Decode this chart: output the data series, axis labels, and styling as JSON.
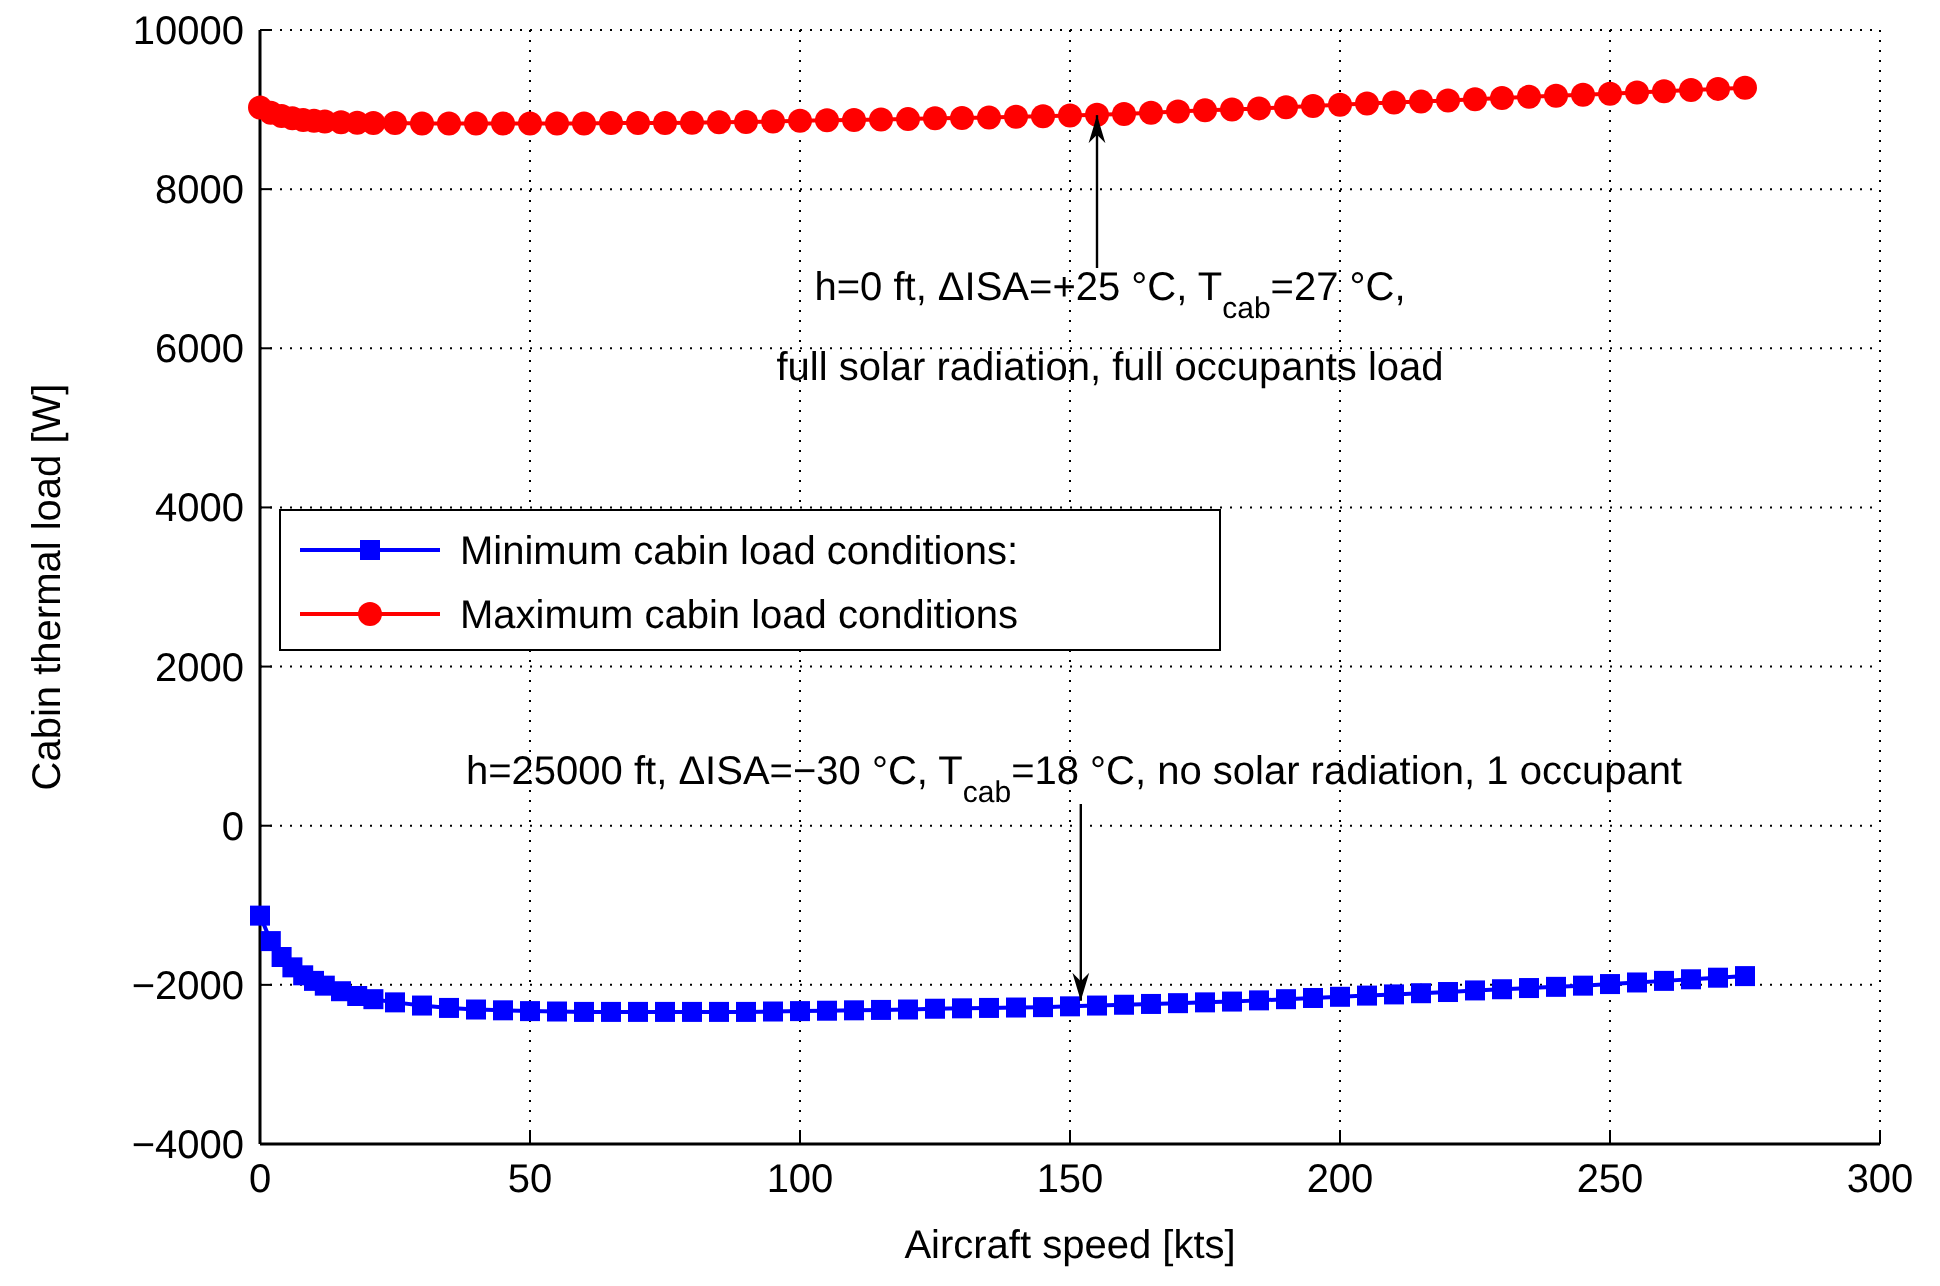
{
  "chart_data": {
    "type": "line",
    "xlabel": "Aircraft speed [kts]",
    "ylabel": "Cabin thermal load [W]",
    "xlim": [
      0,
      300
    ],
    "xticks": [
      0,
      50,
      100,
      150,
      200,
      250,
      300
    ],
    "ylim": [
      -4000,
      10000
    ],
    "yticks": [
      {
        "value": -4000,
        "label": "−4000"
      },
      {
        "value": -2000,
        "label": "−2000"
      },
      0,
      2000,
      4000,
      6000,
      8000,
      10000
    ],
    "grid": true,
    "legend": "left",
    "line_style": "solid",
    "series": [
      {
        "name": "Minimum cabin load conditions:",
        "color": "#0000ff",
        "marker": "square",
        "x": [
          0,
          2,
          4,
          6,
          8,
          10,
          12,
          15,
          18,
          21,
          25,
          30,
          35,
          40,
          45,
          50,
          55,
          60,
          65,
          70,
          75,
          80,
          85,
          90,
          95,
          100,
          105,
          110,
          115,
          120,
          125,
          130,
          135,
          140,
          145,
          150,
          155,
          160,
          165,
          170,
          175,
          180,
          185,
          190,
          195,
          200,
          205,
          210,
          215,
          220,
          225,
          230,
          235,
          240,
          245,
          250,
          255,
          260,
          265,
          270,
          275
        ],
        "values": [
          -1130,
          -1450,
          -1650,
          -1780,
          -1880,
          -1950,
          -2010,
          -2080,
          -2140,
          -2180,
          -2220,
          -2260,
          -2290,
          -2310,
          -2320,
          -2330,
          -2335,
          -2340,
          -2340,
          -2340,
          -2340,
          -2340,
          -2340,
          -2340,
          -2335,
          -2330,
          -2325,
          -2320,
          -2315,
          -2310,
          -2300,
          -2295,
          -2290,
          -2285,
          -2280,
          -2270,
          -2260,
          -2250,
          -2240,
          -2230,
          -2220,
          -2210,
          -2195,
          -2180,
          -2165,
          -2150,
          -2135,
          -2120,
          -2105,
          -2090,
          -2070,
          -2055,
          -2040,
          -2025,
          -2010,
          -1990,
          -1970,
          -1950,
          -1930,
          -1910,
          -1890
        ]
      },
      {
        "name": "Maximum cabin load conditions",
        "color": "#ff0000",
        "marker": "circle",
        "x": [
          0,
          2,
          4,
          6,
          8,
          10,
          12,
          15,
          18,
          21,
          25,
          30,
          35,
          40,
          45,
          50,
          55,
          60,
          65,
          70,
          75,
          80,
          85,
          90,
          95,
          100,
          105,
          110,
          115,
          120,
          125,
          130,
          135,
          140,
          145,
          150,
          155,
          160,
          165,
          170,
          175,
          180,
          185,
          190,
          195,
          200,
          205,
          210,
          215,
          220,
          225,
          230,
          235,
          240,
          245,
          250,
          255,
          260,
          265,
          270,
          275
        ],
        "values": [
          9025,
          8960,
          8920,
          8890,
          8870,
          8860,
          8850,
          8840,
          8835,
          8830,
          8830,
          8825,
          8825,
          8825,
          8825,
          8825,
          8825,
          8825,
          8830,
          8830,
          8830,
          8835,
          8840,
          8845,
          8850,
          8860,
          8865,
          8870,
          8875,
          8880,
          8890,
          8895,
          8900,
          8910,
          8915,
          8925,
          8935,
          8945,
          8960,
          8975,
          8990,
          9000,
          9015,
          9030,
          9045,
          9060,
          9075,
          9090,
          9100,
          9115,
          9130,
          9145,
          9160,
          9175,
          9185,
          9200,
          9215,
          9230,
          9245,
          9260,
          9275
        ]
      }
    ],
    "annotations": [
      {
        "text": "h=0 ft, ΔISA=+25 °C, T$_{cab}$=27 °C,\nfull solar radiation, full occupants load",
        "x": 155,
        "y": 8930
      },
      {
        "text": "h=25000 ft, ΔISA=−30 °C, T$_{cab}$=18 °C, no solar radiation, 1 occupant",
        "x": 152,
        "y": -2200
      }
    ]
  }
}
